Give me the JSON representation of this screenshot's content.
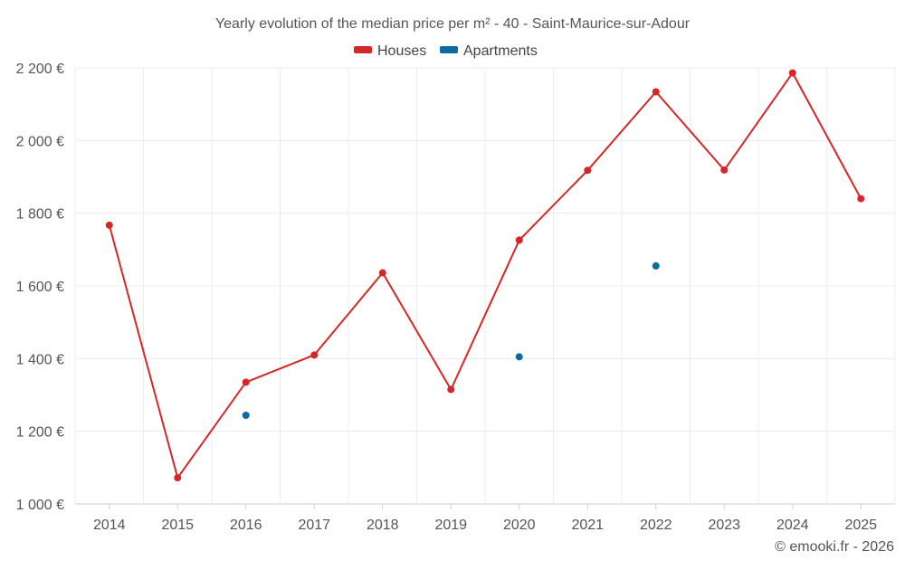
{
  "chart_data": {
    "type": "line",
    "title": "Yearly evolution of the median price per m² - 40 - Saint-Maurice-sur-Adour",
    "categories": [
      "2014",
      "2015",
      "2016",
      "2017",
      "2018",
      "2019",
      "2020",
      "2021",
      "2022",
      "2023",
      "2024",
      "2025"
    ],
    "series": [
      {
        "name": "Houses",
        "color": "#d62728",
        "values": [
          1767,
          1072,
          1335,
          1410,
          1636,
          1315,
          1726,
          1918,
          2134,
          1919,
          2186,
          1840
        ]
      },
      {
        "name": "Apartments",
        "color": "#0b6aa2",
        "values": [
          null,
          null,
          1244,
          null,
          null,
          null,
          1405,
          null,
          1655,
          null,
          null,
          null
        ]
      }
    ],
    "y_ticks": [
      "1 000 €",
      "1 200 €",
      "1 400 €",
      "1 600 €",
      "1 800 €",
      "2 000 €",
      "2 200 €"
    ],
    "y_tick_values": [
      1000,
      1200,
      1400,
      1600,
      1800,
      2000,
      2200
    ],
    "ylim": [
      1000,
      2200
    ],
    "xlabel": "",
    "ylabel": "",
    "grid": true,
    "legend_position": "top-center",
    "credit": "© emooki.fr - 2026"
  }
}
